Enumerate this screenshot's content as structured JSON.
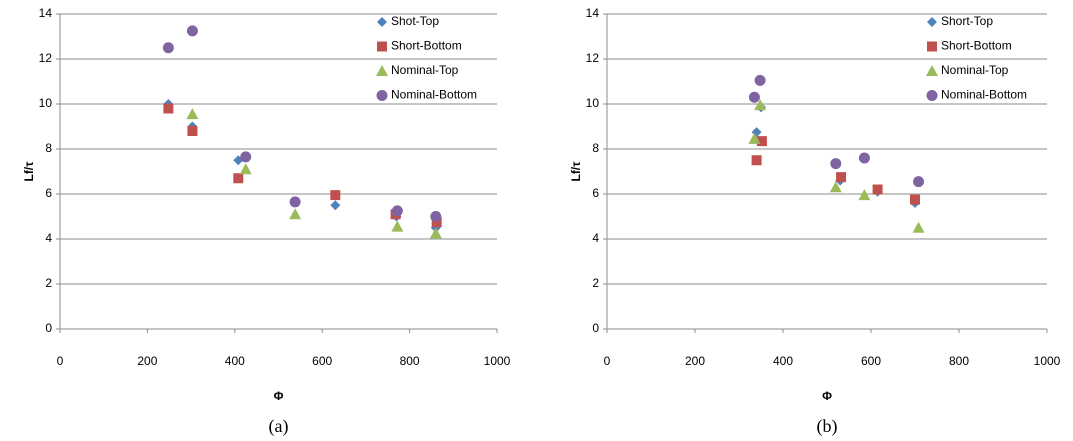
{
  "chart_data": [
    {
      "type": "scatter",
      "caption": "(a)",
      "xlabel": "Φ",
      "ylabel": "Lf/τ",
      "xlim": [
        0,
        1000
      ],
      "xticks": [
        0,
        200,
        400,
        600,
        800,
        1000
      ],
      "ylim": [
        0,
        14
      ],
      "yticks": [
        0,
        2,
        4,
        6,
        8,
        10,
        12,
        14
      ],
      "grid": true,
      "legend": "upper right",
      "series": [
        {
          "name": "Shot-Top",
          "color": "#4f81bd",
          "marker": "diamond",
          "x": [
            248,
            303,
            408,
            630,
            770,
            860
          ],
          "values": [
            10.0,
            9.0,
            7.5,
            5.5,
            5.0,
            4.5
          ]
        },
        {
          "name": "Short-Bottom",
          "color": "#c0504d",
          "marker": "square",
          "x": [
            248,
            303,
            408,
            630,
            768,
            862
          ],
          "values": [
            9.8,
            8.8,
            6.7,
            5.95,
            5.1,
            4.75
          ]
        },
        {
          "name": "Nominal-Top",
          "color": "#9bbb59",
          "marker": "triangle",
          "x": [
            303,
            425,
            538,
            772,
            860
          ],
          "values": [
            9.55,
            7.1,
            5.1,
            4.55,
            4.25
          ]
        },
        {
          "name": "Nominal-Bottom",
          "color": "#8064a2",
          "marker": "circle",
          "x": [
            248,
            303,
            425,
            538,
            772,
            860
          ],
          "values": [
            12.5,
            13.25,
            7.65,
            5.65,
            5.25,
            5.0
          ]
        }
      ]
    },
    {
      "type": "scatter",
      "caption": "(b)",
      "xlabel": "Φ",
      "ylabel": "Lf/τ",
      "xlim": [
        0,
        1000
      ],
      "xticks": [
        0,
        200,
        400,
        600,
        800,
        1000
      ],
      "ylim": [
        0,
        14
      ],
      "yticks": [
        0,
        2,
        4,
        6,
        8,
        10,
        12,
        14
      ],
      "grid": true,
      "legend": "upper right",
      "series": [
        {
          "name": "Short-Top",
          "color": "#4f81bd",
          "marker": "diamond",
          "x": [
            340,
            350,
            530,
            615,
            700
          ],
          "values": [
            8.75,
            9.85,
            6.6,
            6.1,
            5.6
          ]
        },
        {
          "name": "Short-Bottom",
          "color": "#c0504d",
          "marker": "square",
          "x": [
            340,
            352,
            532,
            615,
            700
          ],
          "values": [
            7.5,
            8.35,
            6.75,
            6.2,
            5.75
          ]
        },
        {
          "name": "Nominal-Top",
          "color": "#9bbb59",
          "marker": "triangle",
          "x": [
            335,
            348,
            520,
            585,
            708
          ],
          "values": [
            8.45,
            9.95,
            6.3,
            5.95,
            4.5
          ]
        },
        {
          "name": "Nominal-Bottom",
          "color": "#8064a2",
          "marker": "circle",
          "x": [
            335,
            348,
            520,
            585,
            708
          ],
          "values": [
            10.3,
            11.05,
            7.35,
            7.6,
            6.55
          ]
        }
      ]
    }
  ]
}
